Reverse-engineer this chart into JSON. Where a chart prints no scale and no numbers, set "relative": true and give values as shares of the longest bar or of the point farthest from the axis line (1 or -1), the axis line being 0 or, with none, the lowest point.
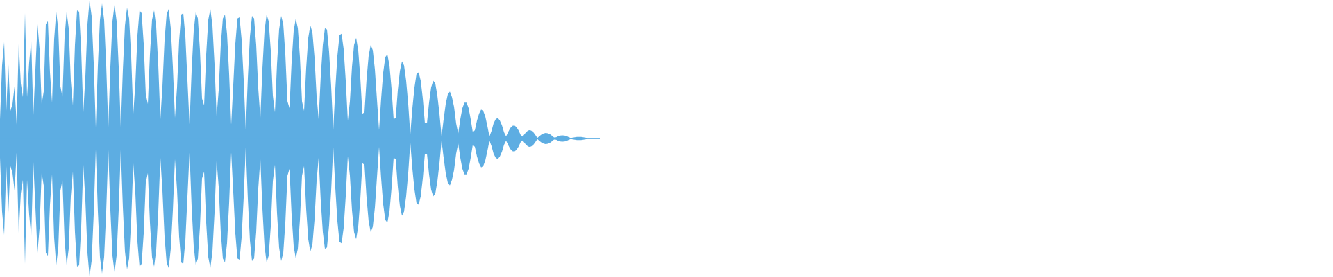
{
  "chart_data": {
    "type": "area",
    "relative": true,
    "categories": [
      null,
      null,
      null,
      null,
      null,
      null,
      null,
      null,
      null,
      null,
      null,
      null,
      null,
      null,
      null,
      null,
      null,
      null,
      null,
      null,
      null,
      null,
      null,
      null,
      null,
      null,
      null,
      null,
      null,
      null,
      null,
      null,
      null,
      null,
      null,
      null,
      null,
      null,
      null,
      null,
      null,
      null,
      null,
      null,
      null,
      null,
      null,
      null,
      null,
      null,
      null,
      null,
      null,
      null,
      null,
      null,
      null,
      null,
      null,
      null,
      null,
      null,
      null,
      null,
      null,
      null,
      null,
      null,
      null,
      null,
      null,
      null,
      null,
      null,
      null,
      null,
      null,
      null,
      null,
      null,
      null,
      null,
      null,
      null,
      null,
      null,
      null,
      null,
      null,
      null,
      null,
      null,
      null,
      null,
      null,
      null,
      null,
      null,
      null,
      null,
      null,
      null,
      null,
      null,
      null,
      null,
      null,
      null,
      null,
      null,
      null,
      null,
      null,
      null,
      null,
      null,
      null,
      null,
      null,
      null,
      null,
      null,
      null,
      null,
      null,
      null,
      null,
      null,
      null,
      null,
      null,
      null,
      null,
      null,
      null,
      null,
      null,
      null,
      null,
      null,
      null,
      null,
      null,
      null,
      null,
      null,
      null,
      null,
      null,
      null,
      null,
      null,
      null,
      null,
      null,
      null,
      null,
      null,
      null,
      null,
      null,
      null,
      null,
      null,
      null,
      null,
      null,
      null,
      null,
      null,
      null,
      null,
      null,
      null,
      null,
      null,
      null,
      null,
      null,
      null,
      null,
      null,
      null,
      null,
      null,
      null,
      null,
      null,
      null,
      null,
      null,
      null,
      null,
      null,
      null,
      null,
      null,
      null,
      null,
      null,
      null,
      null,
      null,
      null,
      null,
      null,
      null,
      null,
      null,
      null,
      null,
      null,
      null,
      null,
      null,
      null,
      null,
      null,
      null,
      null,
      null,
      null,
      null,
      null,
      null,
      null,
      null,
      null,
      null,
      null,
      null,
      null,
      null,
      null,
      null,
      null,
      null,
      null,
      null,
      null,
      null,
      null,
      null,
      null,
      null,
      null,
      null,
      null,
      null,
      null,
      null,
      null,
      null,
      null,
      null,
      null,
      null,
      null,
      null,
      null,
      null,
      null,
      null,
      null,
      null,
      null,
      null,
      null,
      null,
      null,
      null,
      null,
      null,
      null,
      null,
      null,
      null,
      null,
      null,
      null,
      null,
      null,
      null,
      null,
      null,
      null,
      null,
      null,
      null
    ],
    "series": [
      {
        "color": "#5dade2",
        "values": [
          0.14,
          0.53,
          0.7,
          0.2,
          0.54,
          0.2,
          0.25,
          0.38,
          0.1,
          0.69,
          0.4,
          0.3,
          0.91,
          0.3,
          0.55,
          0.71,
          0.17,
          0.5,
          0.83,
          0.65,
          0.25,
          0.34,
          0.83,
          0.85,
          0.48,
          0.26,
          0.72,
          0.92,
          0.79,
          0.38,
          0.3,
          0.73,
          0.92,
          0.8,
          0.42,
          0.24,
          0.68,
          0.93,
          0.92,
          0.64,
          0.19,
          0.45,
          0.83,
          1.0,
          0.89,
          0.55,
          0.08,
          0.53,
          0.86,
          0.98,
          0.86,
          0.53,
          0.08,
          0.52,
          0.85,
          0.97,
          0.85,
          0.52,
          0.08,
          0.5,
          0.82,
          0.95,
          0.87,
          0.59,
          0.18,
          0.4,
          0.75,
          0.93,
          0.91,
          0.69,
          0.32,
          0.25,
          0.61,
          0.86,
          0.93,
          0.81,
          0.53,
          0.14,
          0.38,
          0.71,
          0.9,
          0.94,
          0.8,
          0.52,
          0.15,
          0.37,
          0.71,
          0.9,
          0.91,
          0.74,
          0.42,
          0.1,
          0.49,
          0.78,
          0.92,
          0.87,
          0.64,
          0.29,
          0.24,
          0.61,
          0.86,
          0.94,
          0.82,
          0.54,
          0.16,
          0.35,
          0.68,
          0.87,
          0.9,
          0.76,
          0.47,
          0.1,
          0.39,
          0.69,
          0.87,
          0.88,
          0.72,
          0.43,
          0.06,
          0.44,
          0.74,
          0.89,
          0.87,
          0.68,
          0.36,
          0.15,
          0.51,
          0.78,
          0.9,
          0.85,
          0.64,
          0.31,
          0.19,
          0.54,
          0.79,
          0.89,
          0.83,
          0.61,
          0.27,
          0.22,
          0.55,
          0.78,
          0.87,
          0.8,
          0.59,
          0.27,
          0.2,
          0.51,
          0.73,
          0.82,
          0.77,
          0.59,
          0.31,
          0.14,
          0.45,
          0.68,
          0.8,
          0.79,
          0.63,
          0.38,
          0.06,
          0.36,
          0.6,
          0.75,
          0.76,
          0.65,
          0.42,
          0.13,
          0.27,
          0.52,
          0.68,
          0.73,
          0.64,
          0.44,
          0.18,
          0.19,
          0.43,
          0.6,
          0.68,
          0.64,
          0.5,
          0.28,
          0.06,
          0.29,
          0.48,
          0.59,
          0.61,
          0.53,
          0.36,
          0.14,
          0.15,
          0.35,
          0.49,
          0.56,
          0.53,
          0.42,
          0.25,
          0.03,
          0.22,
          0.37,
          0.47,
          0.48,
          0.42,
          0.29,
          0.11,
          0.11,
          0.26,
          0.37,
          0.42,
          0.4,
          0.31,
          0.18,
          0.015,
          0.14,
          0.25,
          0.32,
          0.34,
          0.3,
          0.23,
          0.11,
          0.035,
          0.14,
          0.22,
          0.26,
          0.26,
          0.22,
          0.14,
          0.045,
          0.06,
          0.13,
          0.18,
          0.21,
          0.2,
          0.16,
          0.09,
          0.015,
          0.055,
          0.11,
          0.14,
          0.15,
          0.13,
          0.095,
          0.045,
          0.015,
          0.048,
          0.075,
          0.092,
          0.094,
          0.082,
          0.058,
          0.025,
          0.014,
          0.035,
          0.052,
          0.06,
          0.058,
          0.046,
          0.027,
          0.004,
          0.017,
          0.029,
          0.037,
          0.04,
          0.038,
          0.031,
          0.02,
          0.007,
          0.009,
          0.016,
          0.021,
          0.023,
          0.021,
          0.017,
          0.01,
          0.004,
          0.006,
          0.009,
          0.011,
          0.011,
          0.011,
          0.009,
          0.006,
          0.004,
          0.004,
          0.004,
          0.004,
          0.004,
          0.004,
          0.004
        ]
      },
      {
        "color": "#5dade2",
        "values": [
          -0.14,
          -0.53,
          -0.7,
          -0.2,
          -0.54,
          -0.2,
          -0.25,
          -0.38,
          -0.1,
          -0.69,
          -0.4,
          -0.3,
          -0.91,
          -0.3,
          -0.55,
          -0.71,
          -0.17,
          -0.5,
          -0.83,
          -0.65,
          -0.25,
          -0.34,
          -0.83,
          -0.85,
          -0.48,
          -0.26,
          -0.72,
          -0.92,
          -0.79,
          -0.38,
          -0.3,
          -0.73,
          -0.92,
          -0.8,
          -0.42,
          -0.24,
          -0.68,
          -0.93,
          -0.92,
          -0.64,
          -0.19,
          -0.45,
          -0.83,
          -1.0,
          -0.89,
          -0.55,
          -0.08,
          -0.53,
          -0.86,
          -0.98,
          -0.86,
          -0.53,
          -0.08,
          -0.52,
          -0.85,
          -0.97,
          -0.85,
          -0.52,
          -0.08,
          -0.5,
          -0.82,
          -0.95,
          -0.87,
          -0.59,
          -0.18,
          -0.4,
          -0.75,
          -0.93,
          -0.91,
          -0.69,
          -0.32,
          -0.25,
          -0.61,
          -0.86,
          -0.93,
          -0.81,
          -0.53,
          -0.14,
          -0.38,
          -0.71,
          -0.9,
          -0.94,
          -0.8,
          -0.52,
          -0.15,
          -0.37,
          -0.71,
          -0.9,
          -0.91,
          -0.74,
          -0.42,
          -0.1,
          -0.49,
          -0.78,
          -0.92,
          -0.87,
          -0.64,
          -0.29,
          -0.24,
          -0.61,
          -0.86,
          -0.94,
          -0.82,
          -0.54,
          -0.16,
          -0.35,
          -0.68,
          -0.87,
          -0.9,
          -0.76,
          -0.47,
          -0.1,
          -0.39,
          -0.69,
          -0.87,
          -0.88,
          -0.72,
          -0.43,
          -0.06,
          -0.44,
          -0.74,
          -0.89,
          -0.87,
          -0.68,
          -0.36,
          -0.15,
          -0.51,
          -0.78,
          -0.9,
          -0.85,
          -0.64,
          -0.31,
          -0.19,
          -0.54,
          -0.79,
          -0.89,
          -0.83,
          -0.61,
          -0.27,
          -0.22,
          -0.55,
          -0.78,
          -0.87,
          -0.8,
          -0.59,
          -0.27,
          -0.2,
          -0.51,
          -0.73,
          -0.82,
          -0.77,
          -0.59,
          -0.31,
          -0.14,
          -0.45,
          -0.68,
          -0.8,
          -0.79,
          -0.63,
          -0.38,
          -0.06,
          -0.36,
          -0.6,
          -0.75,
          -0.76,
          -0.65,
          -0.42,
          -0.13,
          -0.27,
          -0.52,
          -0.68,
          -0.73,
          -0.64,
          -0.44,
          -0.18,
          -0.19,
          -0.43,
          -0.6,
          -0.68,
          -0.64,
          -0.5,
          -0.28,
          -0.06,
          -0.29,
          -0.48,
          -0.59,
          -0.61,
          -0.53,
          -0.36,
          -0.14,
          -0.15,
          -0.35,
          -0.49,
          -0.56,
          -0.53,
          -0.42,
          -0.25,
          -0.03,
          -0.22,
          -0.37,
          -0.47,
          -0.48,
          -0.42,
          -0.29,
          -0.11,
          -0.11,
          -0.26,
          -0.37,
          -0.42,
          -0.4,
          -0.31,
          -0.18,
          -0.015,
          -0.14,
          -0.25,
          -0.32,
          -0.34,
          -0.3,
          -0.23,
          -0.11,
          -0.035,
          -0.14,
          -0.22,
          -0.26,
          -0.26,
          -0.22,
          -0.14,
          -0.045,
          -0.06,
          -0.13,
          -0.18,
          -0.21,
          -0.2,
          -0.16,
          -0.09,
          -0.015,
          -0.055,
          -0.11,
          -0.14,
          -0.15,
          -0.13,
          -0.095,
          -0.045,
          -0.015,
          -0.048,
          -0.075,
          -0.092,
          -0.094,
          -0.082,
          -0.058,
          -0.025,
          -0.014,
          -0.035,
          -0.052,
          -0.06,
          -0.058,
          -0.046,
          -0.027,
          -0.004,
          -0.017,
          -0.029,
          -0.037,
          -0.04,
          -0.038,
          -0.031,
          -0.02,
          -0.007,
          -0.009,
          -0.016,
          -0.021,
          -0.023,
          -0.021,
          -0.017,
          -0.01,
          -0.004,
          -0.006,
          -0.009,
          -0.011,
          -0.011,
          -0.011,
          -0.009,
          -0.006,
          -0.004,
          -0.004,
          -0.004,
          -0.004,
          -0.004,
          -0.004,
          -0.004
        ]
      }
    ],
    "ref_lines": [
      {
        "axis": "y",
        "value": 0,
        "color": "#5dade2"
      }
    ]
  }
}
